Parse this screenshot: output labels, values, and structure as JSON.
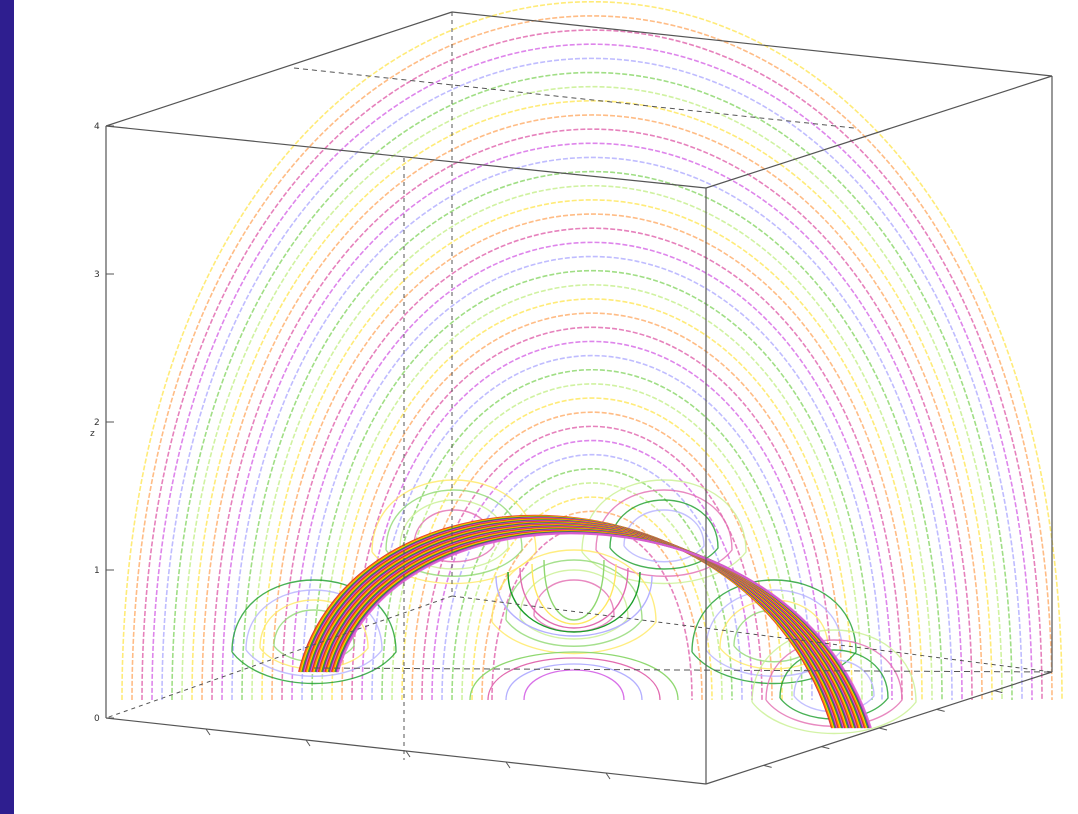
{
  "colors": {
    "frame": "#2e1e8f",
    "background": "#ffffff",
    "box": "#555555",
    "palette": [
      "#e26bb0",
      "#ffb070",
      "#ffe860",
      "#c8f090",
      "#8fd870",
      "#b4b0ff",
      "#d870e8"
    ],
    "bundle": [
      "#d42020",
      "#ff8a00",
      "#ffd400",
      "#1a9e2a",
      "#7a2ab0",
      "#e060d0"
    ]
  },
  "chart_data": {
    "type": "line",
    "title": "",
    "xlabel": "",
    "ylabel": "",
    "zlabel": "z",
    "z_ticks": [
      "0",
      "1",
      "2",
      "3",
      "4"
    ],
    "zlim": [
      0,
      4
    ],
    "grid": false,
    "legend": "none",
    "projection": "3d-perspective-box",
    "series": [
      {
        "kind": "open-field-arcs",
        "count": 38,
        "footpoint_half_width": [
          0.9,
          3.6
        ],
        "apex_height": [
          0.9,
          4.3
        ]
      },
      {
        "kind": "twisted-flux-rope",
        "apex_height": 0.75,
        "footpoint_half_width": 1.1
      },
      {
        "kind": "side-lobes",
        "count": 24,
        "apex_height": 0.55
      }
    ]
  }
}
